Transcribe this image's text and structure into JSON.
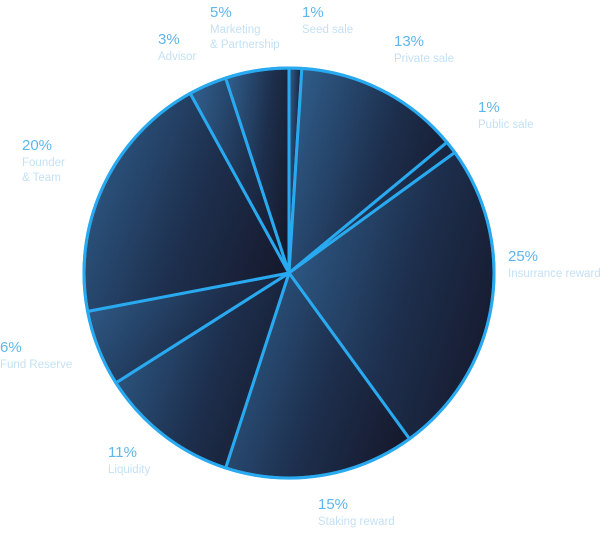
{
  "chart_data": {
    "type": "pie",
    "slices": [
      {
        "percent_label": "1%",
        "value": 1,
        "label_lines": [
          "Seed sale"
        ]
      },
      {
        "percent_label": "13%",
        "value": 13,
        "label_lines": [
          "Private sale"
        ]
      },
      {
        "percent_label": "1%",
        "value": 1,
        "label_lines": [
          "Public sale"
        ]
      },
      {
        "percent_label": "25%",
        "value": 25,
        "label_lines": [
          "Insurrance reward"
        ]
      },
      {
        "percent_label": "15%",
        "value": 15,
        "label_lines": [
          "Staking reward"
        ]
      },
      {
        "percent_label": "11%",
        "value": 11,
        "label_lines": [
          "Liquidity"
        ]
      },
      {
        "percent_label": "6%",
        "value": 6,
        "label_lines": [
          "Fund Reserve"
        ]
      },
      {
        "percent_label": "20%",
        "value": 20,
        "label_lines": [
          "Founder",
          "& Team"
        ]
      },
      {
        "percent_label": "3%",
        "value": 3,
        "label_lines": [
          "Advisor"
        ]
      },
      {
        "percent_label": "5%",
        "value": 5,
        "label_lines": [
          "Marketing",
          "& Partnership"
        ]
      }
    ],
    "start_angle_deg": 0,
    "direction": "clockwise",
    "colors": {
      "slice_fill_light": "#2e5a86",
      "slice_fill_dark": "#161a2e",
      "slice_stroke": "#29aaf0",
      "percent_text": "#5fb6ea",
      "label_text": "#c4e1f5"
    }
  }
}
